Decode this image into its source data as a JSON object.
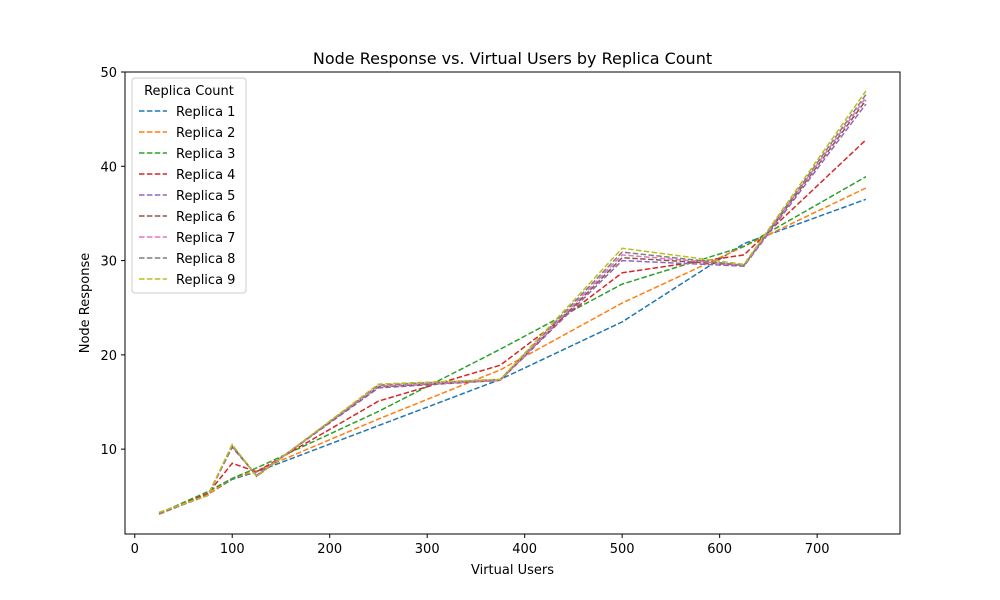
{
  "chart_data": {
    "type": "line",
    "title": "Node Response vs. Virtual Users by Replica Count",
    "xlabel": "Virtual Users",
    "ylabel": "Node Response",
    "xlim": [
      -10,
      785
    ],
    "ylim": [
      1,
      50
    ],
    "x_ticks": [
      0,
      100,
      200,
      300,
      400,
      500,
      600,
      700
    ],
    "y_ticks": [
      10,
      20,
      30,
      40,
      50
    ],
    "grid": false,
    "legend": {
      "title": "Replica Count",
      "placement": "upper-left"
    },
    "line_style": "dashed",
    "x": [
      25,
      75,
      100,
      125,
      250,
      375,
      500,
      625,
      750
    ],
    "series": [
      {
        "name": "Replica 1",
        "color": "#1f77b4",
        "values": [
          3.1,
          5.2,
          6.8,
          7.6,
          12.5,
          17.4,
          23.5,
          31.8,
          36.5
        ]
      },
      {
        "name": "Replica 2",
        "color": "#ff7f0e",
        "values": [
          3.1,
          5.2,
          6.9,
          7.7,
          13.2,
          18.4,
          25.5,
          31.5,
          37.7
        ]
      },
      {
        "name": "Replica 3",
        "color": "#2ca02c",
        "values": [
          3.2,
          5.5,
          6.9,
          8.0,
          14.0,
          20.6,
          27.5,
          31.5,
          38.9
        ]
      },
      {
        "name": "Replica 4",
        "color": "#d62728",
        "values": [
          3.2,
          5.3,
          8.5,
          7.6,
          15.1,
          18.9,
          28.7,
          30.6,
          42.8
        ]
      },
      {
        "name": "Replica 5",
        "color": "#9467bd",
        "values": [
          3.2,
          5.1,
          10.2,
          7.2,
          16.5,
          17.3,
          30.0,
          29.4,
          46.6
        ]
      },
      {
        "name": "Replica 6",
        "color": "#8c564b",
        "values": [
          3.2,
          5.1,
          10.3,
          7.2,
          16.6,
          17.3,
          30.3,
          29.5,
          47.0
        ]
      },
      {
        "name": "Replica 7",
        "color": "#e377c2",
        "values": [
          3.2,
          5.1,
          10.4,
          7.2,
          16.7,
          17.3,
          30.6,
          29.5,
          47.3
        ]
      },
      {
        "name": "Replica 8",
        "color": "#7f7f7f",
        "values": [
          3.2,
          5.1,
          10.4,
          7.1,
          16.8,
          17.4,
          30.9,
          29.5,
          47.6
        ]
      },
      {
        "name": "Replica 9",
        "color": "#bcbd22",
        "values": [
          3.3,
          5.1,
          10.5,
          7.1,
          16.9,
          17.4,
          31.3,
          29.6,
          48.0
        ]
      }
    ]
  }
}
